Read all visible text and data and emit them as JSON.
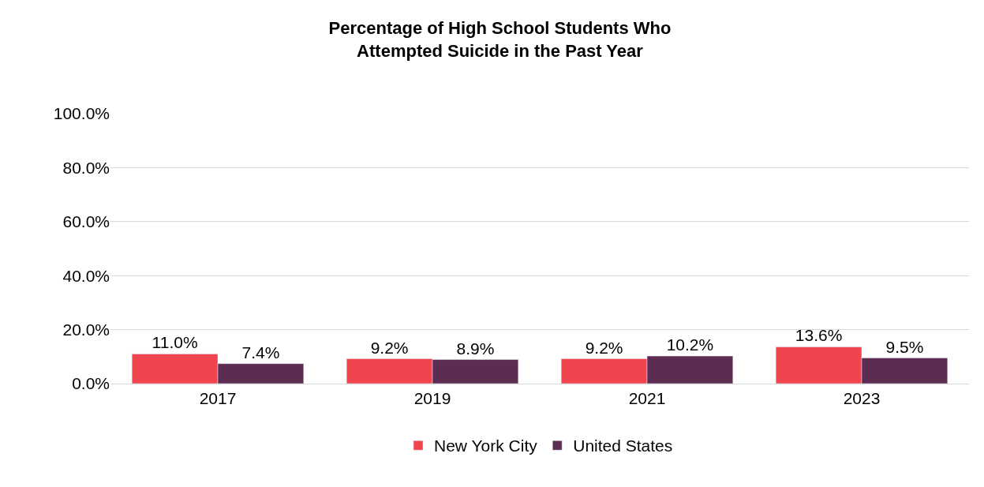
{
  "chart_data": {
    "type": "bar",
    "title": "Percentage of High School Students Who\nAttempted Suicide in the Past Year",
    "categories": [
      "2017",
      "2019",
      "2021",
      "2023"
    ],
    "series": [
      {
        "name": "New York City",
        "color": "#f0444f",
        "values": [
          11.0,
          9.2,
          9.2,
          13.6
        ],
        "value_labels": [
          "11.0%",
          "9.2%",
          "9.2%",
          "13.6%"
        ]
      },
      {
        "name": "United States",
        "color": "#5c2d50",
        "values": [
          7.4,
          8.9,
          10.2,
          9.5
        ],
        "value_labels": [
          "7.4%",
          "8.9%",
          "10.2%",
          "9.5%"
        ]
      }
    ],
    "ylim": [
      0,
      100
    ],
    "yticks": [
      {
        "value": 0,
        "label": "0.0%"
      },
      {
        "value": 20,
        "label": "20.0%"
      },
      {
        "value": 40,
        "label": "40.0%"
      },
      {
        "value": 60,
        "label": "60.0%"
      },
      {
        "value": 80,
        "label": "80.0%"
      },
      {
        "value": 100,
        "label": "100.0%"
      }
    ],
    "grid": "y",
    "legend": "bottom"
  }
}
